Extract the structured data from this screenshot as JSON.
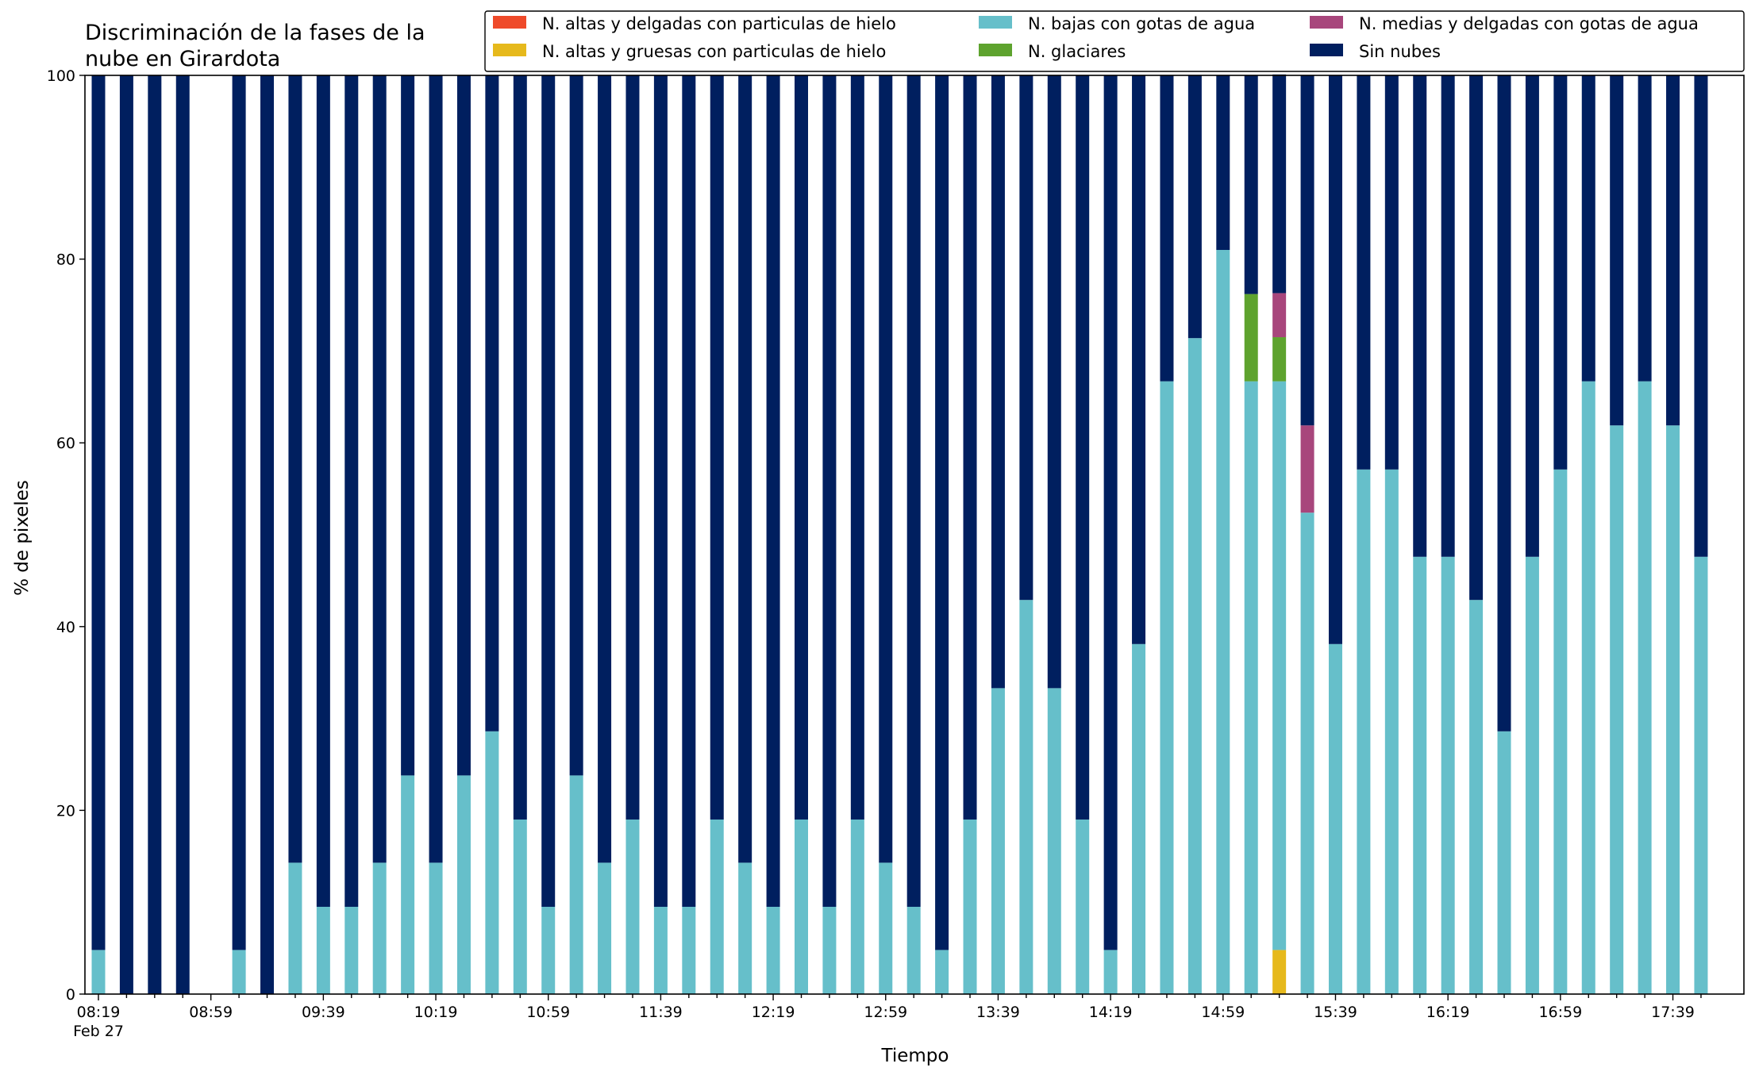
{
  "chart_data": {
    "type": "bar",
    "stacked": true,
    "title": [
      "Discriminación de la fases de la",
      "nube en Girardota"
    ],
    "xlabel": "Tiempo",
    "ylabel": "% de pixeles",
    "ylim": [
      0,
      100
    ],
    "yticks": [
      0,
      20,
      40,
      60,
      80,
      100
    ],
    "grid": false,
    "legend_position": "top-right",
    "x_tick_labels": [
      "08:19",
      "08:59",
      "09:39",
      "10:19",
      "10:59",
      "11:39",
      "12:19",
      "12:59",
      "13:39",
      "14:19",
      "14:59",
      "15:39",
      "16:19",
      "16:59",
      "17:39"
    ],
    "x_date_label": "Feb 27",
    "categories": [
      "08:19",
      "08:29",
      "08:39",
      "08:49",
      "08:59",
      "09:09",
      "09:19",
      "09:29",
      "09:39",
      "09:49",
      "09:59",
      "10:09",
      "10:19",
      "10:29",
      "10:39",
      "10:49",
      "10:59",
      "11:09",
      "11:19",
      "11:29",
      "11:39",
      "11:49",
      "11:59",
      "12:09",
      "12:19",
      "12:29",
      "12:39",
      "12:49",
      "12:59",
      "13:09",
      "13:19",
      "13:29",
      "13:39",
      "13:49",
      "13:59",
      "14:09",
      "14:19",
      "14:29",
      "14:39",
      "14:49",
      "14:59",
      "15:09",
      "15:19",
      "15:29",
      "15:39",
      "15:49",
      "15:59",
      "16:09",
      "16:19",
      "16:29",
      "16:39",
      "16:49",
      "16:59",
      "17:09",
      "17:19",
      "17:29",
      "17:39",
      "17:49"
    ],
    "series": [
      {
        "name": "N. altas y delgadas con particulas de hielo",
        "color": "#ef4a2a",
        "values": [
          0,
          0,
          0,
          0,
          0,
          0,
          0,
          0,
          0,
          0,
          0,
          0,
          0,
          0,
          0,
          0,
          0,
          0,
          0,
          0,
          0,
          0,
          0,
          0,
          0,
          0,
          0,
          0,
          0,
          0,
          0,
          0,
          0,
          0,
          0,
          0,
          0,
          0,
          0,
          0,
          0,
          0,
          0,
          0,
          0,
          0,
          0,
          0,
          0,
          0,
          0,
          0,
          0,
          0,
          0,
          0,
          0,
          0
        ]
      },
      {
        "name": "N. altas y gruesas con particulas de hielo",
        "color": "#e6b91c",
        "values": [
          0,
          0,
          0,
          0,
          0,
          0,
          0,
          0,
          0,
          0,
          0,
          0,
          0,
          0,
          0,
          0,
          0,
          0,
          0,
          0,
          0,
          0,
          0,
          0,
          0,
          0,
          0,
          0,
          0,
          0,
          0,
          0,
          0,
          0,
          0,
          0,
          0,
          0,
          0,
          0,
          0,
          0,
          4.8,
          0,
          0,
          0,
          0,
          0,
          0,
          0,
          0,
          0,
          0,
          0,
          0,
          0,
          0,
          0
        ]
      },
      {
        "name": "N. bajas con gotas de agua",
        "color": "#66bfca",
        "values": [
          4.8,
          0,
          0,
          0,
          0,
          4.8,
          0,
          14.3,
          9.5,
          9.5,
          14.3,
          23.8,
          14.3,
          23.8,
          28.6,
          19,
          9.5,
          23.8,
          14.3,
          19,
          9.5,
          9.5,
          19,
          14.3,
          9.5,
          19,
          9.5,
          19,
          14.3,
          9.5,
          4.8,
          19,
          33.3,
          42.9,
          33.3,
          19,
          4.8,
          38.1,
          66.7,
          71.4,
          81,
          66.7,
          61.9,
          52.4,
          38.1,
          57.1,
          57.1,
          47.6,
          47.6,
          42.9,
          28.6,
          47.6,
          57.1,
          66.7,
          61.9,
          66.7,
          61.9,
          47.6
        ]
      },
      {
        "name": "N. glaciares",
        "color": "#5ea32e",
        "values": [
          0,
          0,
          0,
          0,
          0,
          0,
          0,
          0,
          0,
          0,
          0,
          0,
          0,
          0,
          0,
          0,
          0,
          0,
          0,
          0,
          0,
          0,
          0,
          0,
          0,
          0,
          0,
          0,
          0,
          0,
          0,
          0,
          0,
          0,
          0,
          0,
          0,
          0,
          0,
          0,
          0,
          9.5,
          4.8,
          0,
          0,
          0,
          0,
          0,
          0,
          0,
          0,
          0,
          0,
          0,
          0,
          0,
          0,
          0
        ]
      },
      {
        "name": "N. medias y delgadas con gotas de agua",
        "color": "#a8467c",
        "values": [
          0,
          0,
          0,
          0,
          0,
          0,
          0,
          0,
          0,
          0,
          0,
          0,
          0,
          0,
          0,
          0,
          0,
          0,
          0,
          0,
          0,
          0,
          0,
          0,
          0,
          0,
          0,
          0,
          0,
          0,
          0,
          0,
          0,
          0,
          0,
          0,
          0,
          0,
          0,
          0,
          0,
          0,
          4.8,
          9.5,
          0,
          0,
          0,
          0,
          0,
          0,
          0,
          0,
          0,
          0,
          0,
          0,
          0,
          0
        ]
      },
      {
        "name": "Sin nubes",
        "color": "#001f5f",
        "values": [
          95.2,
          100,
          100,
          100,
          0,
          95.2,
          100,
          85.7,
          90.5,
          90.5,
          85.7,
          76.2,
          85.7,
          76.2,
          71.4,
          81,
          90.5,
          76.2,
          85.7,
          81,
          90.5,
          90.5,
          81,
          85.7,
          90.5,
          81,
          90.5,
          81,
          85.7,
          90.5,
          95.2,
          81,
          66.7,
          57.1,
          66.7,
          81,
          95.2,
          61.9,
          33.3,
          28.6,
          19,
          23.8,
          23.8,
          38.1,
          61.9,
          42.9,
          42.9,
          52.4,
          52.4,
          57.1,
          71.4,
          52.4,
          42.9,
          33.3,
          38.1,
          33.3,
          38.1,
          52.4
        ]
      }
    ]
  }
}
